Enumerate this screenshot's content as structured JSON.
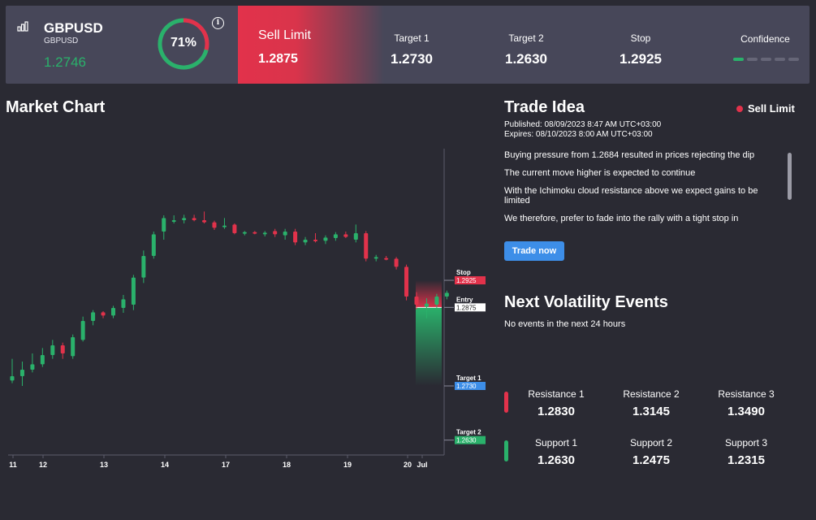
{
  "header": {
    "symbol": "GBPUSD",
    "symbol_sub": "GBPUSD",
    "price": "1.2746",
    "confidence_gauge": {
      "value": 0.71,
      "label": "71%"
    },
    "info_glyph": "i",
    "order": {
      "label": "Sell Limit",
      "price": "1.2875"
    },
    "stats": [
      {
        "label": "Target 1",
        "value": "1.2730"
      },
      {
        "label": "Target 2",
        "value": "1.2630"
      },
      {
        "label": "Stop",
        "value": "1.2925"
      }
    ],
    "confidence": {
      "label": "Confidence",
      "level": 1,
      "max": 5
    }
  },
  "market_chart": {
    "title": "Market Chart",
    "x_ticks": [
      "11",
      "12",
      "13",
      "14",
      "17",
      "18",
      "19",
      "20",
      "Jul"
    ],
    "levels": [
      {
        "name": "Stop",
        "value": "1.2925",
        "color": "#e2324b"
      },
      {
        "name": "Entry",
        "value": "1.2875",
        "color": "#ffffff"
      },
      {
        "name": "Target 1",
        "value": "1.2730",
        "color": "#3d8ee8"
      },
      {
        "name": "Target 2",
        "value": "1.2630",
        "color": "#2ab16b"
      }
    ]
  },
  "chart_data": {
    "type": "candlestick",
    "x_ticks": [
      "11",
      "12",
      "13",
      "14",
      "17",
      "18",
      "19",
      "20",
      "Jul"
    ],
    "y_scale": {
      "ref_high": 1.2925,
      "ref_low": 1.273
    },
    "candles": [
      {
        "o": 1.274,
        "h": 1.278,
        "l": 1.2735,
        "c": 1.2748
      },
      {
        "o": 1.2748,
        "h": 1.2775,
        "l": 1.273,
        "c": 1.276
      },
      {
        "o": 1.276,
        "h": 1.279,
        "l": 1.2755,
        "c": 1.277
      },
      {
        "o": 1.277,
        "h": 1.28,
        "l": 1.2765,
        "c": 1.2787
      },
      {
        "o": 1.2787,
        "h": 1.2815,
        "l": 1.278,
        "c": 1.2805
      },
      {
        "o": 1.2805,
        "h": 1.281,
        "l": 1.278,
        "c": 1.279
      },
      {
        "o": 1.2785,
        "h": 1.2825,
        "l": 1.278,
        "c": 1.282
      },
      {
        "o": 1.2815,
        "h": 1.2858,
        "l": 1.2812,
        "c": 1.285
      },
      {
        "o": 1.285,
        "h": 1.287,
        "l": 1.2842,
        "c": 1.2866
      },
      {
        "o": 1.2866,
        "h": 1.2868,
        "l": 1.2855,
        "c": 1.286
      },
      {
        "o": 1.286,
        "h": 1.2878,
        "l": 1.2855,
        "c": 1.2874
      },
      {
        "o": 1.2874,
        "h": 1.2898,
        "l": 1.2865,
        "c": 1.289
      },
      {
        "o": 1.288,
        "h": 1.2935,
        "l": 1.287,
        "c": 1.293
      },
      {
        "o": 1.293,
        "h": 1.298,
        "l": 1.292,
        "c": 1.297
      },
      {
        "o": 1.297,
        "h": 1.3015,
        "l": 1.2965,
        "c": 1.301
      },
      {
        "o": 1.3015,
        "h": 1.3045,
        "l": 1.3,
        "c": 1.304
      },
      {
        "o": 1.3035,
        "h": 1.3045,
        "l": 1.303,
        "c": 1.3036
      },
      {
        "o": 1.3036,
        "h": 1.3046,
        "l": 1.303,
        "c": 1.304
      },
      {
        "o": 1.304,
        "h": 1.3046,
        "l": 1.3034,
        "c": 1.3036
      },
      {
        "o": 1.3036,
        "h": 1.3052,
        "l": 1.303,
        "c": 1.3032
      },
      {
        "o": 1.3032,
        "h": 1.3035,
        "l": 1.3018,
        "c": 1.3022
      },
      {
        "o": 1.3024,
        "h": 1.304,
        "l": 1.302,
        "c": 1.3026
      },
      {
        "o": 1.3028,
        "h": 1.303,
        "l": 1.301,
        "c": 1.3012
      },
      {
        "o": 1.3012,
        "h": 1.3016,
        "l": 1.3008,
        "c": 1.3014
      },
      {
        "o": 1.3014,
        "h": 1.3016,
        "l": 1.301,
        "c": 1.3012
      },
      {
        "o": 1.301,
        "h": 1.3016,
        "l": 1.3006,
        "c": 1.3013
      },
      {
        "o": 1.3016,
        "h": 1.302,
        "l": 1.3005,
        "c": 1.301
      },
      {
        "o": 1.3008,
        "h": 1.302,
        "l": 1.3,
        "c": 1.3015
      },
      {
        "o": 1.3015,
        "h": 1.302,
        "l": 1.299,
        "c": 1.2995
      },
      {
        "o": 1.2995,
        "h": 1.3005,
        "l": 1.299,
        "c": 1.3
      },
      {
        "o": 1.3,
        "h": 1.3012,
        "l": 1.2995,
        "c": 1.2997
      },
      {
        "o": 1.2998,
        "h": 1.3008,
        "l": 1.2992,
        "c": 1.3004
      },
      {
        "o": 1.3003,
        "h": 1.3014,
        "l": 1.2998,
        "c": 1.301
      },
      {
        "o": 1.301,
        "h": 1.3015,
        "l": 1.3003,
        "c": 1.3005
      },
      {
        "o": 1.3,
        "h": 1.3028,
        "l": 1.2995,
        "c": 1.3012
      },
      {
        "o": 1.3012,
        "h": 1.3016,
        "l": 1.296,
        "c": 1.2965
      },
      {
        "o": 1.2965,
        "h": 1.2972,
        "l": 1.296,
        "c": 1.2968
      },
      {
        "o": 1.2966,
        "h": 1.297,
        "l": 1.2962,
        "c": 1.2964
      },
      {
        "o": 1.2965,
        "h": 1.2968,
        "l": 1.2945,
        "c": 1.295
      },
      {
        "o": 1.295,
        "h": 1.2954,
        "l": 1.2888,
        "c": 1.2895
      },
      {
        "o": 1.2895,
        "h": 1.2903,
        "l": 1.2872,
        "c": 1.288
      },
      {
        "o": 1.2876,
        "h": 1.2892,
        "l": 1.2855,
        "c": 1.2882
      },
      {
        "o": 1.288,
        "h": 1.29,
        "l": 1.2872,
        "c": 1.2895
      },
      {
        "o": 1.2895,
        "h": 1.2906,
        "l": 1.289,
        "c": 1.2902
      }
    ],
    "levels": [
      {
        "name": "Stop",
        "value": 1.2925
      },
      {
        "name": "Entry",
        "value": 1.2875
      },
      {
        "name": "Target 1",
        "value": 1.273
      },
      {
        "name": "Target 2",
        "value": 1.263
      }
    ]
  },
  "trade_idea": {
    "title": "Trade Idea",
    "badge": "Sell Limit",
    "published_label": "Published:",
    "published": "08/09/2023 8:47 AM UTC+03:00",
    "expires_label": "Expires:",
    "expires": "08/10/2023 8:00 AM UTC+03:00",
    "lines": [
      "Buying pressure from 1.2684 resulted in prices rejecting the dip",
      "The current move higher is expected to continue",
      "With the Ichimoku cloud resistance above we expect gains to be limited",
      "We therefore, prefer to fade into the rally with a tight stop in"
    ],
    "button": "Trade now"
  },
  "volatility": {
    "title": "Next Volatility Events",
    "no_events": "No events in the next 24 hours"
  },
  "levels": {
    "resistance": [
      {
        "label": "Resistance 1",
        "value": "1.2830"
      },
      {
        "label": "Resistance 2",
        "value": "1.3145"
      },
      {
        "label": "Resistance 3",
        "value": "1.3490"
      }
    ],
    "support": [
      {
        "label": "Support 1",
        "value": "1.2630"
      },
      {
        "label": "Support 2",
        "value": "1.2475"
      },
      {
        "label": "Support 3",
        "value": "1.2315"
      }
    ],
    "resistance_color": "#e2324b",
    "support_color": "#2ab16b"
  }
}
